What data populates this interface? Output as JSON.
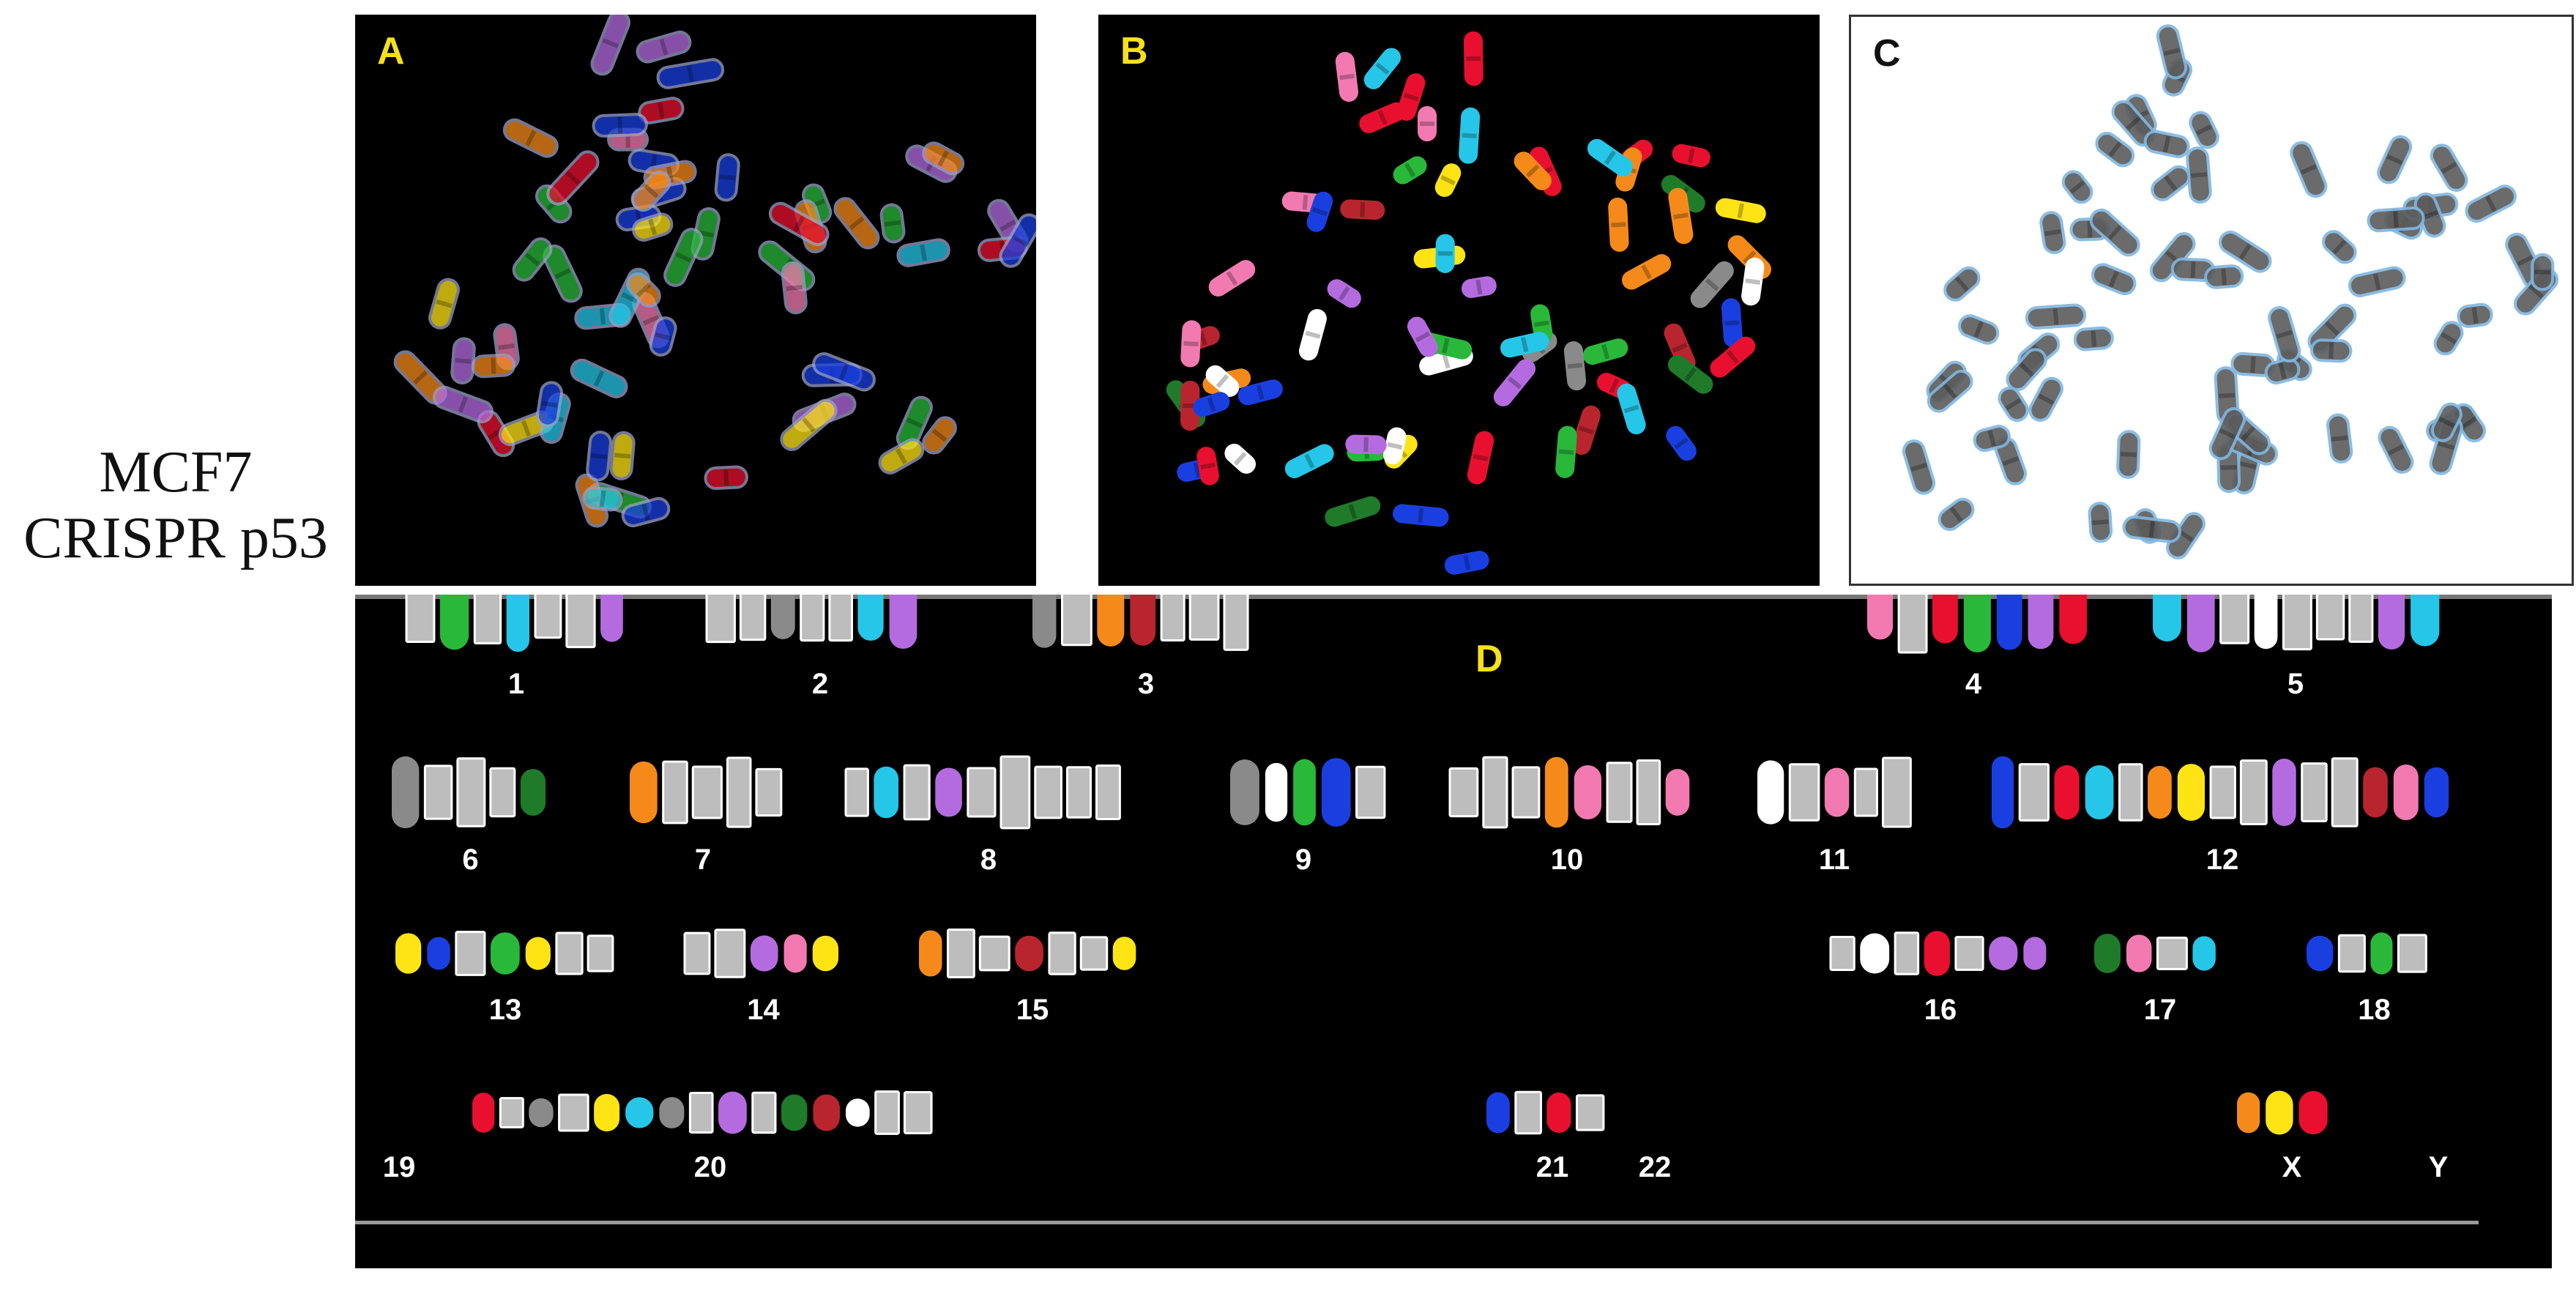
{
  "figure": {
    "side_label_line1": "MCF7",
    "side_label_line2": "CRISPR p53"
  },
  "panels": {
    "a": {
      "letter": "A",
      "letter_color": "#f5e11a"
    },
    "b": {
      "letter": "B",
      "letter_color": "#f5e11a"
    },
    "c": {
      "letter": "C",
      "letter_color": "#111111"
    },
    "d": {
      "letter": "D",
      "letter_color": "#f5e11a"
    }
  },
  "karyotype": {
    "labels": [
      "1",
      "2",
      "3",
      "4",
      "5",
      "6",
      "7",
      "8",
      "9",
      "10",
      "11",
      "12",
      "13",
      "14",
      "15",
      "16",
      "17",
      "18",
      "19",
      "20",
      "21",
      "22",
      "X",
      "Y"
    ]
  },
  "colors": {
    "chromosome_palette": [
      "#e8102e",
      "#1a3fe0",
      "#2ab83a",
      "#f58a1a",
      "#ffe415",
      "#f27ab0",
      "#26c6e8",
      "#b56be0",
      "#ffffff",
      "#b8252e",
      "#1f7a2a",
      "#8a8a8a"
    ],
    "outline_c": "#7fb6e0"
  }
}
